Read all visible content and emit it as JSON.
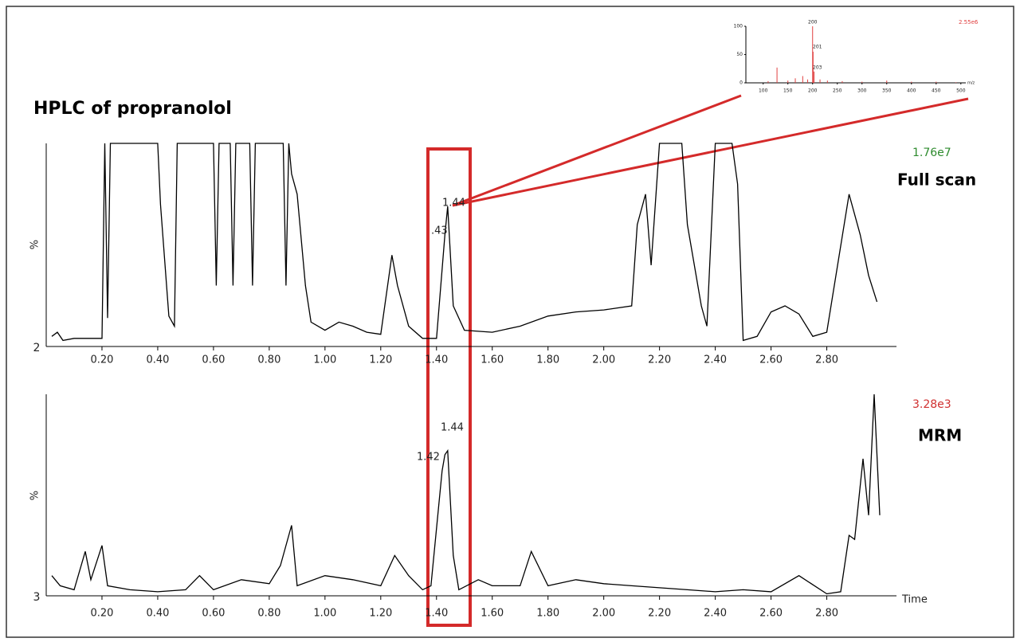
{
  "title": "HPLC of propranolol",
  "chart_data": [
    {
      "type": "line",
      "color": "#000000",
      "x": [
        0.02,
        0.04,
        0.06,
        0.1,
        0.19,
        0.2,
        0.21,
        0.22,
        0.23,
        0.4,
        0.41,
        0.44,
        0.46,
        0.47,
        0.6,
        0.61,
        0.62,
        0.66,
        0.67,
        0.68,
        0.73,
        0.74,
        0.75,
        0.85,
        0.86,
        0.87,
        0.88,
        0.9,
        0.93,
        0.95,
        1.0,
        1.05,
        1.1,
        1.15,
        1.2,
        1.24,
        1.26,
        1.3,
        1.35,
        1.4,
        1.43,
        1.44,
        1.46,
        1.5,
        1.6,
        1.7,
        1.8,
        1.9,
        2.0,
        2.1,
        2.12,
        2.15,
        2.17,
        2.2,
        2.28,
        2.3,
        2.35,
        2.37,
        2.4,
        2.46,
        2.48,
        2.5,
        2.55,
        2.6,
        2.65,
        2.7,
        2.75,
        2.8,
        2.88,
        2.92,
        2.95,
        2.98
      ],
      "values": [
        5,
        7,
        3,
        4,
        4,
        4,
        100,
        14,
        100,
        100,
        70,
        15,
        10,
        100,
        100,
        30,
        100,
        100,
        30,
        100,
        100,
        30,
        100,
        100,
        30,
        100,
        85,
        75,
        30,
        12,
        8,
        12,
        10,
        7,
        6,
        45,
        30,
        10,
        4,
        4,
        55,
        69,
        20,
        8,
        7,
        10,
        15,
        17,
        18,
        20,
        60,
        75,
        40,
        100,
        100,
        60,
        20,
        10,
        100,
        100,
        80,
        3,
        5,
        17,
        20,
        16,
        5,
        7,
        75,
        55,
        35,
        22
      ],
      "xlim": [
        0,
        3.05
      ],
      "ylim": [
        0,
        100
      ],
      "xticks": [
        {
          "value": 0.2,
          "label": "0.20"
        },
        {
          "value": 0.4,
          "label": "0.40"
        },
        {
          "value": 0.6,
          "label": "0.60"
        },
        {
          "value": 0.8,
          "label": "0.80"
        },
        {
          "value": 1.0,
          "label": "1.00"
        },
        {
          "value": 1.2,
          "label": "1.20"
        },
        {
          "value": 1.4,
          "label": "1.40"
        },
        {
          "value": 1.6,
          "label": "1.60"
        },
        {
          "value": 1.8,
          "label": "1.80"
        },
        {
          "value": 2.0,
          "label": "2.00"
        },
        {
          "value": 2.2,
          "label": "2.20"
        },
        {
          "value": 2.4,
          "label": "2.40"
        },
        {
          "value": 2.6,
          "label": "2.60"
        },
        {
          "value": 2.8,
          "label": "2.80"
        }
      ],
      "y_label": "%",
      "trace_label": "2",
      "intensity_label": "1.76e7",
      "intensity_color": "#2e8b2e",
      "scan_label": "Full scan",
      "annotations": [
        "1.44",
        ".43"
      ]
    },
    {
      "type": "line",
      "color": "#000000",
      "x": [
        0.02,
        0.05,
        0.1,
        0.14,
        0.16,
        0.2,
        0.22,
        0.3,
        0.4,
        0.5,
        0.55,
        0.6,
        0.7,
        0.8,
        0.84,
        0.88,
        0.9,
        1.0,
        1.1,
        1.2,
        1.25,
        1.3,
        1.35,
        1.38,
        1.42,
        1.43,
        1.44,
        1.46,
        1.48,
        1.55,
        1.6,
        1.7,
        1.74,
        1.8,
        1.9,
        2.0,
        2.1,
        2.2,
        2.3,
        2.4,
        2.5,
        2.6,
        2.7,
        2.8,
        2.85,
        2.88,
        2.9,
        2.93,
        2.95,
        2.97,
        2.99
      ],
      "values": [
        10,
        5,
        3,
        22,
        8,
        25,
        5,
        3,
        2,
        3,
        10,
        3,
        8,
        6,
        15,
        35,
        5,
        10,
        8,
        5,
        20,
        10,
        3,
        5,
        62,
        70,
        72,
        20,
        3,
        8,
        5,
        5,
        22,
        5,
        8,
        6,
        5,
        4,
        3,
        2,
        3,
        2,
        10,
        1,
        2,
        30,
        28,
        68,
        40,
        100,
        40
      ],
      "xlim": [
        0,
        3.05
      ],
      "ylim": [
        0,
        100
      ],
      "xticks": [
        {
          "value": 0.2,
          "label": "0.20"
        },
        {
          "value": 0.4,
          "label": "0.40"
        },
        {
          "value": 0.6,
          "label": "0.60"
        },
        {
          "value": 0.8,
          "label": "0.80"
        },
        {
          "value": 1.0,
          "label": "1.00"
        },
        {
          "value": 1.2,
          "label": "1.20"
        },
        {
          "value": 1.4,
          "label": "1.40"
        },
        {
          "value": 1.6,
          "label": "1.60"
        },
        {
          "value": 1.8,
          "label": "1.80"
        },
        {
          "value": 2.0,
          "label": "2.00"
        },
        {
          "value": 2.2,
          "label": "2.20"
        },
        {
          "value": 2.4,
          "label": "2.40"
        },
        {
          "value": 2.6,
          "label": "2.60"
        },
        {
          "value": 2.8,
          "label": "2.80"
        }
      ],
      "y_label": "%",
      "trace_label": "3",
      "intensity_label": "3.28e3",
      "intensity_color": "#d03030",
      "scan_label": "MRM",
      "x_label": "Time",
      "annotations": [
        "1.44",
        "1.42"
      ]
    },
    {
      "type": "stem",
      "color": "#e04040",
      "x": [
        110,
        128,
        150,
        165,
        180,
        190,
        200,
        201,
        203,
        215,
        230,
        260,
        300,
        350,
        400,
        450,
        490
      ],
      "values": [
        3,
        27,
        4,
        8,
        12,
        6,
        100,
        55,
        20,
        6,
        4,
        3,
        2,
        4,
        2,
        2,
        1
      ],
      "xlim": [
        65,
        510
      ],
      "ylim": [
        0,
        100
      ],
      "xticks": [
        100,
        150,
        200,
        250,
        300,
        350,
        400,
        450,
        500
      ],
      "yticks": [
        0,
        50,
        100
      ],
      "intensity_label": "2.55e6",
      "intensity_color": "#e04040",
      "x_label": "m/z",
      "annotations": [
        "200",
        "201",
        "203"
      ]
    }
  ]
}
